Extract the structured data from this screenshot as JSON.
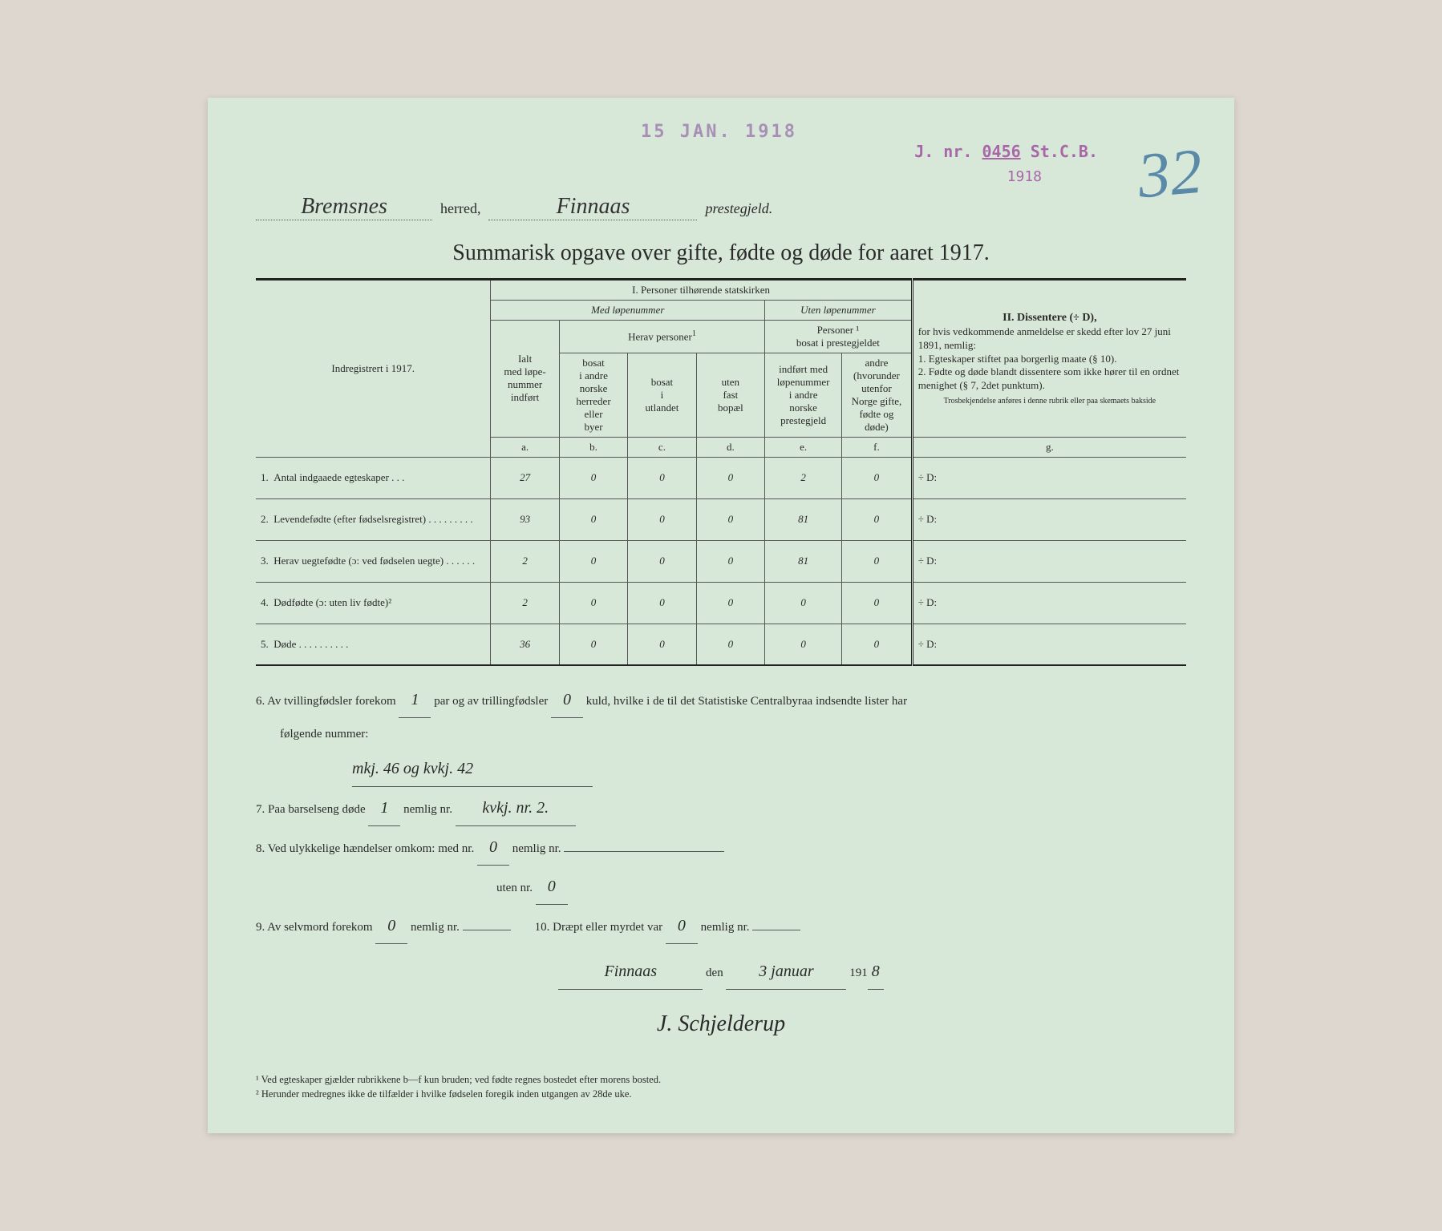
{
  "stamps": {
    "date": "15 JAN. 1918",
    "jnr_prefix": "J. nr.",
    "jnr_num": "0456",
    "jnr_suffix": "St.C.B.",
    "year": "1918",
    "big_number": "32"
  },
  "header": {
    "herred_value": "Bremsnes",
    "herred_label": "herred,",
    "prestegjeld_value": "Finnaas",
    "prestegjeld_label": "prestegjeld."
  },
  "title": "Summarisk opgave over gifte, fødte og døde for aaret 1917.",
  "table": {
    "row_header": "Indregistrert i 1917.",
    "section1": "I.  Personer tilhørende statskirken",
    "med_lope": "Med løpenummer",
    "uten_lope": "Uten løpenummer",
    "herav": "Herav personer",
    "bosat_preste": "Personer ¹\nbosat i prestegjeldet",
    "ialt": "Ialt\nmed løpe-\nnummer\nindført",
    "col_b": "bosat\ni andre\nnorske\nherreder\neller\nbyer",
    "col_c": "bosat\ni\nutlandet",
    "col_d": "uten\nfast\nbopæl",
    "col_e": "indført med\nløpenummer\ni andre\nnorske\nprestegjeld",
    "col_f": "andre\n(hvorunder\nutenfor\nNorge gifte,\nfødte og døde)",
    "letters": [
      "a.",
      "b.",
      "c.",
      "d.",
      "e.",
      "f.",
      "g."
    ],
    "section2_head": "II.  Dissentere (÷ D),",
    "section2_body": "for hvis vedkommende anmeldelse er skedd efter lov 27 juni 1891, nemlig:\n1. Egteskaper stiftet paa borgerlig maate (§ 10).\n2. Fødte og døde blandt dissentere som ikke hører til en ordnet menighet (§ 7, 2det punktum).",
    "section2_foot": "Trosbekjendelse anføres i denne rubrik eller paa skemaets bakside",
    "rows": [
      {
        "n": "1.",
        "label": "Antal indgaaede egteskaper . . .",
        "a": "27",
        "b": "0",
        "c": "0",
        "d": "0",
        "e": "2",
        "f": "0",
        "g": "÷ D:"
      },
      {
        "n": "2.",
        "label": "Levendefødte (efter fødselsregistret) . . . . . . . . .",
        "a": "93",
        "b": "0",
        "c": "0",
        "d": "0",
        "e": "81",
        "f": "0",
        "g": "÷ D:"
      },
      {
        "n": "3.",
        "label": "Herav uegtefødte (ɔ: ved fødselen uegte) . . . . . .",
        "a": "2",
        "b": "0",
        "c": "0",
        "d": "0",
        "e": "81",
        "f": "0",
        "g": "÷ D:"
      },
      {
        "n": "4.",
        "label": "Dødfødte (ɔ: uten liv fødte)²",
        "a": "2",
        "b": "0",
        "c": "0",
        "d": "0",
        "e": "0",
        "f": "0",
        "g": "÷ D:"
      },
      {
        "n": "5.",
        "label": "Døde . . . . . . . . . .",
        "a": "36",
        "b": "0",
        "c": "0",
        "d": "0",
        "e": "0",
        "f": "0",
        "g": "÷ D:"
      }
    ]
  },
  "notes": {
    "n6a": "6.  Av tvillingfødsler forekom",
    "n6_par": "1",
    "n6b": "par og av trillingfødsler",
    "n6_kuld": "0",
    "n6c": "kuld, hvilke i de til det Statistiske Centralbyraa indsendte lister har",
    "n6d": "følgende nummer:",
    "n6_val": "mkj. 46 og kvkj. 42",
    "n7a": "7.  Paa barselseng døde",
    "n7_v1": "1",
    "n7b": "nemlig nr.",
    "n7_v2": "kvkj. nr. 2.",
    "n8a": "8.  Ved ulykkelige hændelser omkom:  med nr.",
    "n8_v1": "0",
    "n8b": "nemlig nr.",
    "n8c": "uten nr.",
    "n8_v2": "0",
    "n9a": "9.  Av selvmord forekom",
    "n9_v": "0",
    "n9b": "nemlig nr.",
    "n10a": "10.  Dræpt eller myrdet var",
    "n10_v": "0",
    "n10b": "nemlig nr.",
    "sig_place": "Finnaas",
    "sig_den": "den",
    "sig_date": "3 januar",
    "sig_year_prefix": "191",
    "sig_year": "8",
    "signature": "J. Schjelderup"
  },
  "footnotes": {
    "f1": "¹ Ved egteskaper gjælder rubrikkene b—f kun bruden; ved fødte regnes bostedet efter morens bosted.",
    "f2": "² Herunder medregnes ikke de tilfælder i hvilke fødselen foregik inden utgangen av 28de uke."
  },
  "colors": {
    "page_bg": "#d8e8d8",
    "text": "#2a2a2a",
    "stamp_purple": "#a868a8",
    "big_num_blue": "#5a8aa8",
    "border": "#222222"
  }
}
